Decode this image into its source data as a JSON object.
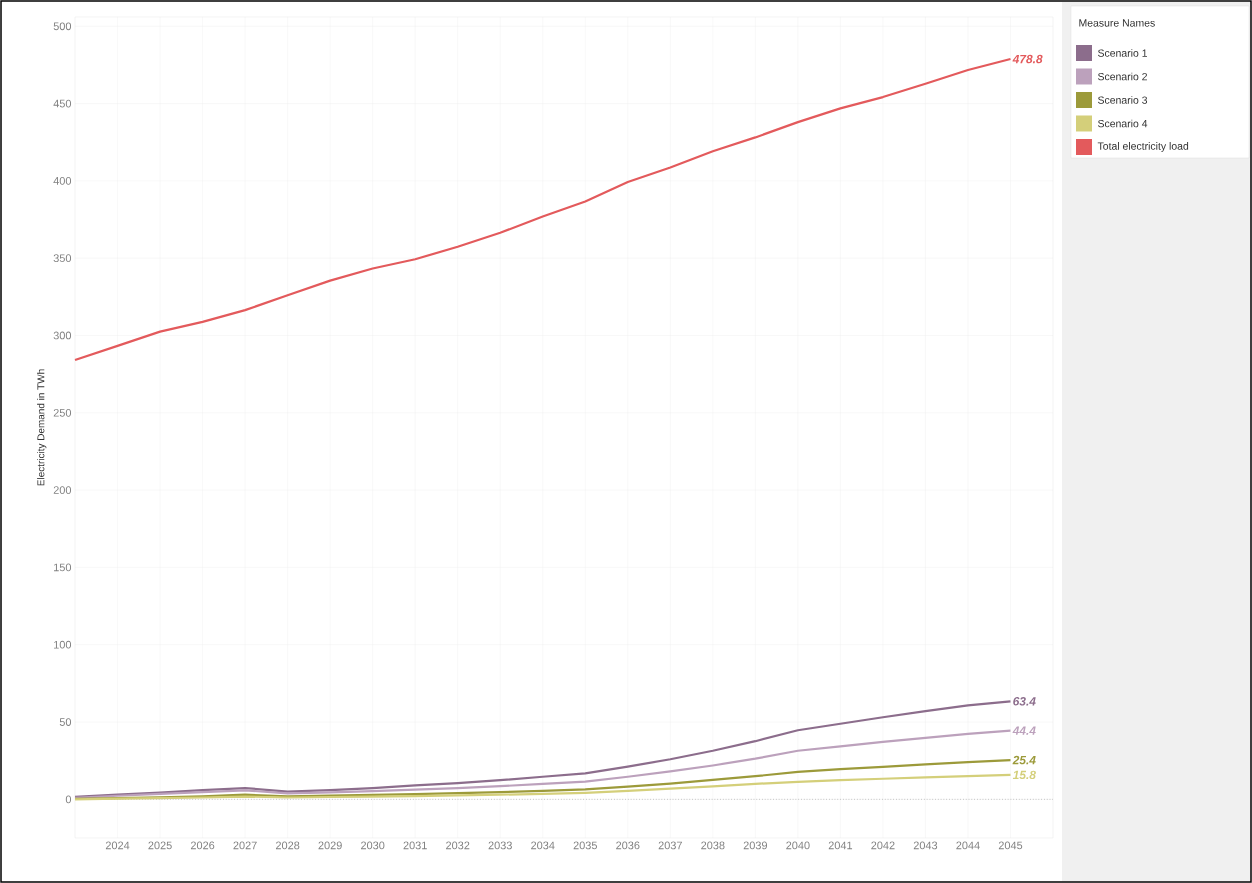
{
  "chart_data": {
    "type": "line",
    "ylabel": "Electricity Demand in TWh",
    "legend_title": "Measure Names",
    "x": [
      2023,
      2024,
      2025,
      2026,
      2027,
      2028,
      2029,
      2030,
      2031,
      2032,
      2033,
      2034,
      2035,
      2036,
      2037,
      2038,
      2039,
      2040,
      2041,
      2042,
      2043,
      2044,
      2045
    ],
    "series": [
      {
        "name": "Scenario 1",
        "color": "#8c6d8c",
        "values": [
          1.6,
          3,
          4.3,
          6,
          7.3,
          5,
          6,
          7.3,
          9,
          10.5,
          12.4,
          14.6,
          16.8,
          21.2,
          25.9,
          31.4,
          37.6,
          44.7,
          48.9,
          53.1,
          57.1,
          60.8,
          63.4
        ],
        "value_labels": [
          null,
          null,
          null,
          null,
          null,
          null,
          null,
          null,
          null,
          null,
          null,
          null,
          null,
          null,
          null,
          null,
          null,
          null,
          null,
          null,
          null,
          null,
          "63.4"
        ]
      },
      {
        "name": "Scenario 2",
        "color": "#bca1bc",
        "values": [
          1,
          2.3,
          3.5,
          4.6,
          5.8,
          3.8,
          4.5,
          5.3,
          6.3,
          7.3,
          8.5,
          10,
          11.5,
          14.6,
          18.1,
          21.9,
          26.3,
          31.4,
          34.3,
          37.2,
          39.8,
          42.3,
          44.4
        ],
        "value_labels": [
          null,
          null,
          null,
          null,
          null,
          null,
          null,
          null,
          null,
          null,
          null,
          null,
          null,
          null,
          null,
          null,
          null,
          null,
          null,
          null,
          null,
          null,
          "44.4"
        ]
      },
      {
        "name": "Scenario 3",
        "color": "#9c9a3a",
        "values": [
          0.3,
          0.8,
          1.3,
          2,
          3,
          2,
          2.4,
          2.9,
          3.4,
          4,
          4.7,
          5.5,
          6.4,
          8.2,
          10.2,
          12.6,
          15,
          17.7,
          19.5,
          21,
          22.6,
          24.1,
          25.4
        ],
        "value_labels": [
          null,
          null,
          null,
          null,
          null,
          null,
          null,
          null,
          null,
          null,
          null,
          null,
          null,
          null,
          null,
          null,
          null,
          null,
          null,
          null,
          null,
          null,
          "25.4"
        ]
      },
      {
        "name": "Scenario 4",
        "color": "#d4cf7a",
        "values": [
          0,
          0.4,
          0.8,
          1.2,
          1.8,
          1.2,
          1.5,
          1.8,
          2.1,
          2.5,
          3,
          3.5,
          4.2,
          5.5,
          6.9,
          8.4,
          10,
          11.3,
          12.4,
          13.3,
          14.2,
          15,
          15.8
        ],
        "value_labels": [
          null,
          null,
          null,
          null,
          null,
          null,
          null,
          null,
          null,
          null,
          null,
          null,
          null,
          null,
          null,
          null,
          null,
          null,
          null,
          null,
          null,
          null,
          "15.8"
        ]
      },
      {
        "name": "Total electricity load",
        "color": "#e35a5c",
        "values": [
          284.1,
          293.3,
          302.5,
          308.8,
          316.4,
          326,
          335.5,
          343.3,
          349.3,
          357.4,
          366.4,
          377,
          386.7,
          399.3,
          408.6,
          419.2,
          428.1,
          438,
          446.9,
          454.2,
          462.8,
          471.7,
          478.8
        ],
        "value_labels": [
          null,
          null,
          null,
          null,
          null,
          null,
          null,
          null,
          null,
          null,
          null,
          null,
          null,
          null,
          null,
          null,
          null,
          null,
          null,
          null,
          null,
          null,
          "478.8"
        ]
      }
    ],
    "xlim": [
      2023,
      2046
    ],
    "ylim": [
      -25,
      506
    ],
    "xticks": [
      2024,
      2025,
      2026,
      2027,
      2028,
      2029,
      2030,
      2031,
      2032,
      2033,
      2034,
      2035,
      2036,
      2037,
      2038,
      2039,
      2040,
      2041,
      2042,
      2043,
      2044,
      2045
    ],
    "yticks": [
      0,
      50,
      100,
      150,
      200,
      250,
      300,
      350,
      400,
      450,
      500
    ],
    "ref_lines": [
      {
        "axis": "y",
        "value": 0,
        "color": "#aaaaaa",
        "line_style": "dotted"
      }
    ],
    "grid": true,
    "legend": "right",
    "line_style": "solid"
  }
}
